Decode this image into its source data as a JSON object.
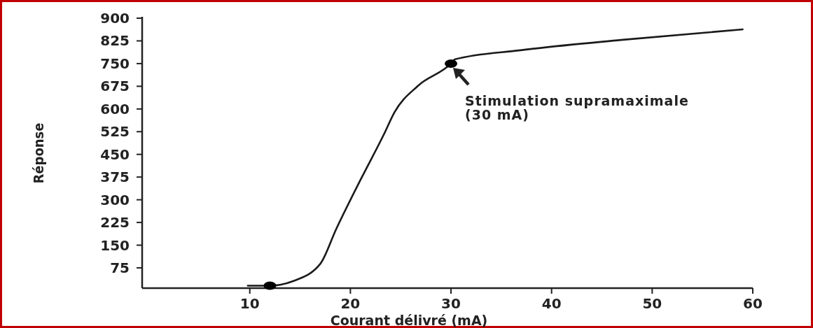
{
  "chart_data": {
    "type": "line",
    "xlabel": "Courant délivré (mA)",
    "ylabel": "Réponse",
    "xlim": [
      -0.7,
      60
    ],
    "xticks": [
      10,
      20,
      30,
      40,
      50,
      60
    ],
    "ylim": [
      8,
      900
    ],
    "yticks": [
      75,
      150,
      225,
      300,
      375,
      450,
      525,
      600,
      675,
      750,
      825,
      900
    ],
    "grid": false,
    "marker": "none",
    "line_style": "solid",
    "series": [
      {
        "color": "#1a1a1a",
        "x": [
          9.8,
          12,
          14.2,
          17,
          18.6,
          20.9,
          23.3,
          24.4,
          26.7,
          30,
          30.4,
          36.9,
          46.9,
          59
        ],
        "values": [
          16,
          16,
          30,
          88,
          204,
          359,
          514,
          590,
          676,
          750,
          764,
          794,
          828,
          863
        ]
      },
      {
        "type": "scatter",
        "marker": "circle",
        "color": "#000000",
        "x": [
          12,
          30
        ],
        "values": [
          16,
          750
        ]
      }
    ],
    "annotations": [
      {
        "text": "Stimulation supramaximale\n(30 mA)",
        "x": 30,
        "y": 750
      }
    ]
  }
}
